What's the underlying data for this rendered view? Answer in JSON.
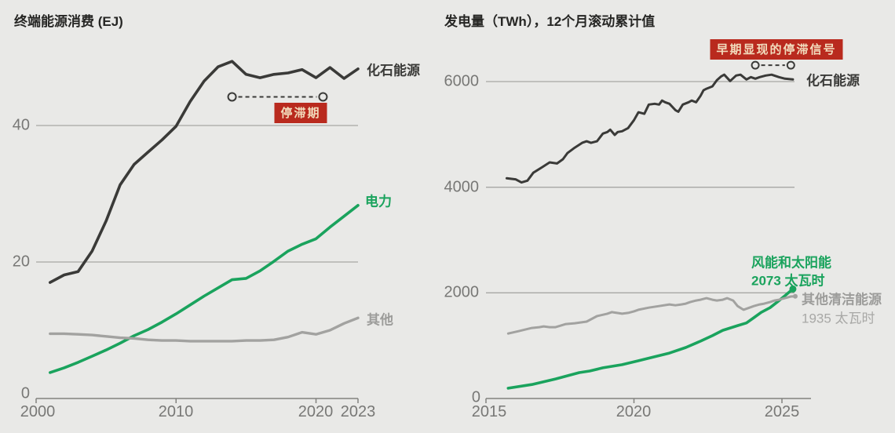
{
  "page": {
    "background": "#e9e9e7"
  },
  "palette": {
    "dark": "#3a3a38",
    "green": "#1aa35d",
    "gray": "#a2a2a0",
    "gray_label": "#9c9c9a",
    "gray_label_light": "#a8a8a6",
    "grid": "#a7a7a4",
    "axis": "#82827f",
    "tick_text": "#787876",
    "badge_bg": "#b92a1e",
    "badge_text": "#f2ddbe"
  },
  "chart_data": [
    {
      "type": "line",
      "title": "终端能源消费 (EJ)",
      "xlabel": "",
      "ylabel": "EJ",
      "xlim": [
        2000,
        2023
      ],
      "ylim": [
        0,
        57
      ],
      "x_ticks": [
        "2000",
        "2010",
        "2020",
        "2023"
      ],
      "y_ticks": [
        0,
        20,
        40
      ],
      "grid": "horizontal",
      "legend_position": "end-of-line labels",
      "annotation": {
        "label": "停滞期",
        "span_years": [
          2014.0,
          2020.5
        ],
        "y_value": 44.2
      },
      "series": [
        {
          "name": "化石能源",
          "color": "#3a3a38",
          "points": [
            [
              2001,
              17.0
            ],
            [
              2002,
              18.1
            ],
            [
              2003,
              18.6
            ],
            [
              2004,
              21.6
            ],
            [
              2005,
              26.0
            ],
            [
              2006,
              31.3
            ],
            [
              2007,
              34.3
            ],
            [
              2008,
              36.1
            ],
            [
              2009,
              37.9
            ],
            [
              2010,
              39.9
            ],
            [
              2011,
              43.5
            ],
            [
              2012,
              46.5
            ],
            [
              2013,
              48.6
            ],
            [
              2014,
              49.4
            ],
            [
              2015,
              47.5
            ],
            [
              2016,
              47.0
            ],
            [
              2017,
              47.5
            ],
            [
              2018,
              47.7
            ],
            [
              2019,
              48.2
            ],
            [
              2020,
              47.0
            ],
            [
              2021,
              48.5
            ],
            [
              2022,
              46.9
            ],
            [
              2023,
              48.3
            ]
          ]
        },
        {
          "name": "电力",
          "color": "#1aa35d",
          "points": [
            [
              2001,
              3.8
            ],
            [
              2002,
              4.5
            ],
            [
              2003,
              5.3
            ],
            [
              2004,
              6.2
            ],
            [
              2005,
              7.1
            ],
            [
              2006,
              8.1
            ],
            [
              2007,
              9.2
            ],
            [
              2008,
              10.1
            ],
            [
              2009,
              11.2
            ],
            [
              2010,
              12.4
            ],
            [
              2011,
              13.7
            ],
            [
              2012,
              15.0
            ],
            [
              2013,
              16.2
            ],
            [
              2014,
              17.4
            ],
            [
              2015,
              17.6
            ],
            [
              2016,
              18.7
            ],
            [
              2017,
              20.1
            ],
            [
              2018,
              21.6
            ],
            [
              2019,
              22.6
            ],
            [
              2020,
              23.4
            ],
            [
              2021,
              25.1
            ],
            [
              2022,
              26.7
            ],
            [
              2023,
              28.3
            ]
          ]
        },
        {
          "name": "其他",
          "color": "#a2a2a0",
          "points": [
            [
              2001,
              9.5
            ],
            [
              2002,
              9.5
            ],
            [
              2003,
              9.4
            ],
            [
              2004,
              9.3
            ],
            [
              2005,
              9.1
            ],
            [
              2006,
              8.9
            ],
            [
              2007,
              8.8
            ],
            [
              2008,
              8.6
            ],
            [
              2009,
              8.5
            ],
            [
              2010,
              8.5
            ],
            [
              2011,
              8.4
            ],
            [
              2012,
              8.4
            ],
            [
              2013,
              8.4
            ],
            [
              2014,
              8.4
            ],
            [
              2015,
              8.5
            ],
            [
              2016,
              8.5
            ],
            [
              2017,
              8.6
            ],
            [
              2018,
              9.0
            ],
            [
              2019,
              9.7
            ],
            [
              2020,
              9.4
            ],
            [
              2021,
              10.0
            ],
            [
              2022,
              11.0
            ],
            [
              2023,
              11.8
            ]
          ]
        }
      ]
    },
    {
      "type": "line",
      "title": "发电量（TWh），12个月滚动累计值",
      "xlabel": "",
      "ylabel": "TWh",
      "xlim": [
        2015,
        2026
      ],
      "ylim": [
        0,
        6600
      ],
      "x_ticks": [
        "2015",
        "2020",
        "2025"
      ],
      "y_ticks": [
        0,
        2000,
        4000,
        6000
      ],
      "grid": "horizontal",
      "legend_position": "end-of-line labels",
      "annotation": {
        "label": "早期显现的停滞信号",
        "span_years": [
          2024.1,
          2025.3
        ],
        "y_value": 6310
      },
      "series": [
        {
          "name": "化石能源",
          "color": "#3a3a38",
          "points": [
            [
              2015.7,
              4170
            ],
            [
              2016,
              4150
            ],
            [
              2016.2,
              4090
            ],
            [
              2016.4,
              4125
            ],
            [
              2016.6,
              4275
            ],
            [
              2016.9,
              4380
            ],
            [
              2017.15,
              4470
            ],
            [
              2017.4,
              4450
            ],
            [
              2017.6,
              4530
            ],
            [
              2017.75,
              4645
            ],
            [
              2018,
              4750
            ],
            [
              2018.25,
              4840
            ],
            [
              2018.4,
              4870
            ],
            [
              2018.55,
              4840
            ],
            [
              2018.75,
              4870
            ],
            [
              2018.95,
              5015
            ],
            [
              2019.1,
              5045
            ],
            [
              2019.2,
              5090
            ],
            [
              2019.35,
              4990
            ],
            [
              2019.45,
              5045
            ],
            [
              2019.6,
              5060
            ],
            [
              2019.8,
              5120
            ],
            [
              2020,
              5270
            ],
            [
              2020.15,
              5420
            ],
            [
              2020.35,
              5390
            ],
            [
              2020.5,
              5565
            ],
            [
              2020.7,
              5580
            ],
            [
              2020.85,
              5565
            ],
            [
              2020.95,
              5640
            ],
            [
              2021.05,
              5610
            ],
            [
              2021.2,
              5580
            ],
            [
              2021.4,
              5460
            ],
            [
              2021.5,
              5430
            ],
            [
              2021.65,
              5565
            ],
            [
              2021.85,
              5610
            ],
            [
              2021.95,
              5640
            ],
            [
              2022.1,
              5610
            ],
            [
              2022.25,
              5730
            ],
            [
              2022.35,
              5835
            ],
            [
              2022.45,
              5865
            ],
            [
              2022.65,
              5910
            ],
            [
              2022.8,
              6025
            ],
            [
              2022.95,
              6100
            ],
            [
              2023.05,
              6130
            ],
            [
              2023.25,
              6010
            ],
            [
              2023.45,
              6115
            ],
            [
              2023.6,
              6130
            ],
            [
              2023.8,
              6040
            ],
            [
              2023.95,
              6085
            ],
            [
              2024.1,
              6055
            ],
            [
              2024.25,
              6085
            ],
            [
              2024.45,
              6115
            ],
            [
              2024.65,
              6130
            ],
            [
              2024.9,
              6085
            ],
            [
              2025.1,
              6055
            ],
            [
              2025.37,
              6040
            ]
          ]
        },
        {
          "name": "风能和太阳能",
          "value_label": "2073 太瓦时",
          "end_value": 2073,
          "color": "#1aa35d",
          "points": [
            [
              2015.75,
              195
            ],
            [
              2016.55,
              265
            ],
            [
              2017.35,
              370
            ],
            [
              2018.15,
              490
            ],
            [
              2018.5,
              520
            ],
            [
              2018.95,
              580
            ],
            [
              2019.6,
              640
            ],
            [
              2020.15,
              715
            ],
            [
              2020.7,
              790
            ],
            [
              2021.2,
              860
            ],
            [
              2021.75,
              965
            ],
            [
              2022.25,
              1085
            ],
            [
              2022.65,
              1190
            ],
            [
              2023,
              1290
            ],
            [
              2023.5,
              1380
            ],
            [
              2023.8,
              1430
            ],
            [
              2024.05,
              1530
            ],
            [
              2024.3,
              1630
            ],
            [
              2024.6,
              1720
            ],
            [
              2024.85,
              1830
            ],
            [
              2025.1,
              1945
            ],
            [
              2025.37,
              2073
            ]
          ]
        },
        {
          "name": "其他清洁能源",
          "value_label": "1935 太瓦时",
          "end_value": 1935,
          "color": "#a2a2a0",
          "points": [
            [
              2015.75,
              1230
            ],
            [
              2016.1,
              1275
            ],
            [
              2016.55,
              1335
            ],
            [
              2016.8,
              1350
            ],
            [
              2016.95,
              1365
            ],
            [
              2017.15,
              1350
            ],
            [
              2017.35,
              1350
            ],
            [
              2017.7,
              1410
            ],
            [
              2018,
              1425
            ],
            [
              2018.4,
              1455
            ],
            [
              2018.75,
              1560
            ],
            [
              2019.1,
              1605
            ],
            [
              2019.25,
              1635
            ],
            [
              2019.6,
              1605
            ],
            [
              2019.8,
              1620
            ],
            [
              2020,
              1650
            ],
            [
              2020.15,
              1680
            ],
            [
              2020.5,
              1720
            ],
            [
              2020.85,
              1750
            ],
            [
              2021.2,
              1780
            ],
            [
              2021.4,
              1765
            ],
            [
              2021.6,
              1780
            ],
            [
              2021.75,
              1795
            ],
            [
              2021.9,
              1825
            ],
            [
              2022.1,
              1855
            ],
            [
              2022.25,
              1870
            ],
            [
              2022.45,
              1900
            ],
            [
              2022.65,
              1870
            ],
            [
              2022.8,
              1855
            ],
            [
              2023,
              1870
            ],
            [
              2023.15,
              1900
            ],
            [
              2023.35,
              1855
            ],
            [
              2023.5,
              1750
            ],
            [
              2023.7,
              1680
            ],
            [
              2023.85,
              1710
            ],
            [
              2024.05,
              1750
            ],
            [
              2024.25,
              1780
            ],
            [
              2024.4,
              1795
            ],
            [
              2024.6,
              1825
            ],
            [
              2024.75,
              1855
            ],
            [
              2024.9,
              1870
            ],
            [
              2025.1,
              1900
            ],
            [
              2025.3,
              1930
            ],
            [
              2025.45,
              1935
            ]
          ]
        }
      ]
    }
  ]
}
